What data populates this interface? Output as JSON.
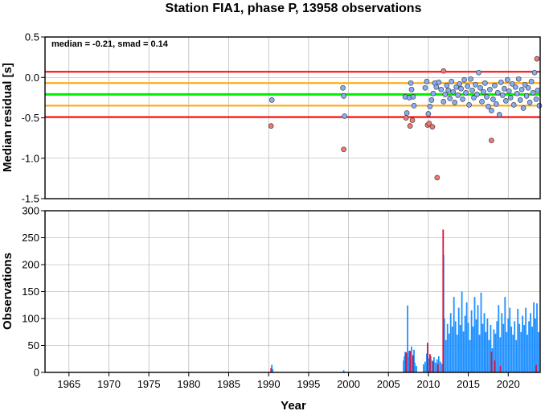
{
  "chart_data": [
    {
      "type": "scatter",
      "title": "Station FIA1, phase P, 13958 observations",
      "ylabel": "Median residual [s]",
      "annotation": "median = -0.21, smad = 0.14",
      "xlim": [
        1962,
        2024
      ],
      "ylim": [
        -1.5,
        0.5
      ],
      "x_ticks": [
        1965,
        1970,
        1975,
        1980,
        1985,
        1990,
        1995,
        2000,
        2005,
        2010,
        2015,
        2020
      ],
      "y_ticks": [
        {
          "value": 0.5,
          "label": "0.5"
        },
        {
          "value": 0.0,
          "label": "0.0"
        },
        {
          "value": -0.5,
          "label": "-0.5"
        },
        {
          "value": -1.0,
          "label": "-1.0"
        },
        {
          "value": -1.5,
          "label": "-1.5"
        }
      ],
      "grid": true,
      "reference_lines": [
        {
          "value": 0.07,
          "color": "#ff0000"
        },
        {
          "value": -0.07,
          "color": "#ffa500"
        },
        {
          "value": -0.21,
          "color": "#00ee00"
        },
        {
          "value": -0.35,
          "color": "#ffa500"
        },
        {
          "value": -0.49,
          "color": "#ff0000"
        }
      ],
      "series": [
        {
          "color": "#87aef5",
          "points": [
            [
              1990.4,
              -0.28
            ],
            [
              1999.3,
              -0.13
            ],
            [
              1999.4,
              -0.23
            ],
            [
              1999.5,
              -0.48
            ],
            [
              2007.1,
              -0.24
            ],
            [
              2007.3,
              -0.44
            ],
            [
              2007.6,
              -0.25
            ],
            [
              2007.8,
              -0.07
            ],
            [
              2007.9,
              -0.15
            ],
            [
              2008.1,
              -0.24
            ],
            [
              2008.2,
              -0.35
            ],
            [
              2009.6,
              -0.13
            ],
            [
              2009.8,
              -0.05
            ],
            [
              2010.0,
              -0.45
            ],
            [
              2010.2,
              -0.36
            ],
            [
              2010.4,
              -0.28
            ],
            [
              2010.6,
              -0.2
            ],
            [
              2010.8,
              -0.07
            ],
            [
              2011.0,
              -0.12
            ],
            [
              2011.3,
              -0.06
            ],
            [
              2011.6,
              -0.15
            ],
            [
              2011.9,
              -0.3
            ],
            [
              2012.1,
              -0.21
            ],
            [
              2012.3,
              -0.1
            ],
            [
              2012.5,
              -0.16
            ],
            [
              2012.7,
              -0.26
            ],
            [
              2012.9,
              -0.05
            ],
            [
              2013.1,
              -0.18
            ],
            [
              2013.3,
              -0.31
            ],
            [
              2013.5,
              -0.12
            ],
            [
              2013.7,
              -0.22
            ],
            [
              2013.9,
              -0.08
            ],
            [
              2014.1,
              -0.14
            ],
            [
              2014.3,
              -0.27
            ],
            [
              2014.5,
              -0.03
            ],
            [
              2014.7,
              -0.19
            ],
            [
              2014.9,
              -0.11
            ],
            [
              2015.1,
              -0.34
            ],
            [
              2015.3,
              -0.02
            ],
            [
              2015.5,
              -0.16
            ],
            [
              2015.7,
              -0.25
            ],
            [
              2015.9,
              -0.09
            ],
            [
              2016.1,
              -0.21
            ],
            [
              2016.3,
              0.06
            ],
            [
              2016.5,
              -0.13
            ],
            [
              2016.7,
              -0.3
            ],
            [
              2016.9,
              -0.18
            ],
            [
              2017.1,
              -0.07
            ],
            [
              2017.3,
              -0.24
            ],
            [
              2017.5,
              -0.36
            ],
            [
              2017.7,
              -0.15
            ],
            [
              2017.9,
              -0.41
            ],
            [
              2018.1,
              -0.27
            ],
            [
              2018.3,
              -0.1
            ],
            [
              2018.5,
              -0.33
            ],
            [
              2018.7,
              -0.19
            ],
            [
              2018.9,
              -0.46
            ],
            [
              2019.1,
              -0.06
            ],
            [
              2019.3,
              -0.22
            ],
            [
              2019.5,
              -0.14
            ],
            [
              2019.7,
              -0.29
            ],
            [
              2019.9,
              -0.03
            ],
            [
              2020.1,
              -0.17
            ],
            [
              2020.3,
              -0.25
            ],
            [
              2020.5,
              -0.08
            ],
            [
              2020.7,
              -0.34
            ],
            [
              2020.9,
              -0.12
            ],
            [
              2021.1,
              -0.2
            ],
            [
              2021.3,
              -0.02
            ],
            [
              2021.5,
              -0.28
            ],
            [
              2021.7,
              -0.15
            ],
            [
              2021.9,
              -0.38
            ],
            [
              2022.1,
              -0.09
            ],
            [
              2022.3,
              -0.23
            ],
            [
              2022.5,
              -0.13
            ],
            [
              2022.7,
              -0.31
            ],
            [
              2022.9,
              -0.05
            ],
            [
              2023.1,
              -0.19
            ],
            [
              2023.3,
              0.06
            ],
            [
              2023.5,
              -0.27
            ],
            [
              2023.7,
              -0.16
            ],
            [
              2023.9,
              -0.35
            ]
          ]
        },
        {
          "color": "#f07870",
          "points": [
            [
              1990.3,
              -0.6
            ],
            [
              1999.4,
              -0.89
            ],
            [
              2007.2,
              -0.5
            ],
            [
              2007.7,
              -0.6
            ],
            [
              2008.0,
              -0.53
            ],
            [
              2009.9,
              -0.59
            ],
            [
              2010.1,
              -0.57
            ],
            [
              2010.5,
              -0.61
            ],
            [
              2011.1,
              -1.24
            ],
            [
              2011.9,
              0.08
            ],
            [
              2017.9,
              -0.78
            ],
            [
              2023.6,
              0.23
            ]
          ]
        }
      ]
    },
    {
      "type": "bar",
      "ylabel": "Observations",
      "xlabel": "Year",
      "xlim": [
        1962,
        2024
      ],
      "ylim": [
        0,
        300
      ],
      "x_ticks": [
        1965,
        1970,
        1975,
        1980,
        1985,
        1990,
        1995,
        2000,
        2005,
        2010,
        2015,
        2020
      ],
      "y_ticks": [
        0,
        50,
        100,
        150,
        200,
        250,
        300
      ],
      "grid": true,
      "series": [
        {
          "color": "#1e90ff",
          "bars": [
            [
              1990.4,
              14
            ],
            [
              1990.5,
              6
            ],
            [
              1999.4,
              4
            ],
            [
              2006.9,
              22
            ],
            [
              2007.0,
              30
            ],
            [
              2007.1,
              38
            ],
            [
              2007.3,
              35
            ],
            [
              2007.4,
              124
            ],
            [
              2007.5,
              28
            ],
            [
              2007.6,
              40
            ],
            [
              2007.8,
              22
            ],
            [
              2007.9,
              48
            ],
            [
              2008.0,
              30
            ],
            [
              2008.2,
              42
            ],
            [
              2008.3,
              18
            ],
            [
              2008.5,
              12
            ],
            [
              2009.4,
              15
            ],
            [
              2009.6,
              20
            ],
            [
              2009.8,
              35
            ],
            [
              2009.9,
              44
            ],
            [
              2010.1,
              26
            ],
            [
              2010.3,
              30
            ],
            [
              2010.5,
              22
            ],
            [
              2010.7,
              28
            ],
            [
              2010.9,
              18
            ],
            [
              2011.1,
              24
            ],
            [
              2011.3,
              30
            ],
            [
              2011.5,
              20
            ],
            [
              2011.7,
              16
            ],
            [
              2011.9,
              218
            ],
            [
              2012.0,
              100
            ],
            [
              2012.2,
              60
            ],
            [
              2012.4,
              90
            ],
            [
              2012.6,
              72
            ],
            [
              2012.8,
              110
            ],
            [
              2013.0,
              85
            ],
            [
              2013.2,
              140
            ],
            [
              2013.4,
              95
            ],
            [
              2013.6,
              70
            ],
            [
              2013.8,
              120
            ],
            [
              2014.0,
              88
            ],
            [
              2014.2,
              150
            ],
            [
              2014.4,
              76
            ],
            [
              2014.6,
              105
            ],
            [
              2014.8,
              130
            ],
            [
              2015.0,
              92
            ],
            [
              2015.2,
              60
            ],
            [
              2015.4,
              115
            ],
            [
              2015.6,
              85
            ],
            [
              2015.8,
              140
            ],
            [
              2016.0,
              98
            ],
            [
              2016.2,
              125
            ],
            [
              2016.4,
              70
            ],
            [
              2016.6,
              148
            ],
            [
              2016.8,
              90
            ],
            [
              2017.0,
              110
            ],
            [
              2017.2,
              75
            ],
            [
              2017.4,
              100
            ],
            [
              2017.6,
              60
            ],
            [
              2017.8,
              88
            ],
            [
              2018.0,
              45
            ],
            [
              2018.2,
              80
            ],
            [
              2018.4,
              72
            ],
            [
              2018.6,
              95
            ],
            [
              2018.8,
              125
            ],
            [
              2019.0,
              65
            ],
            [
              2019.2,
              110
            ],
            [
              2019.4,
              90
            ],
            [
              2019.6,
              140
            ],
            [
              2019.8,
              75
            ],
            [
              2020.0,
              100
            ],
            [
              2020.2,
              120
            ],
            [
              2020.4,
              85
            ],
            [
              2020.6,
              70
            ],
            [
              2020.8,
              95
            ],
            [
              2021.0,
              60
            ],
            [
              2021.2,
              118
            ],
            [
              2021.4,
              90
            ],
            [
              2021.6,
              75
            ],
            [
              2021.8,
              105
            ],
            [
              2022.0,
              88
            ],
            [
              2022.2,
              120
            ],
            [
              2022.4,
              70
            ],
            [
              2022.6,
              95
            ],
            [
              2022.8,
              110
            ],
            [
              2023.0,
              85
            ],
            [
              2023.2,
              130
            ],
            [
              2023.4,
              100
            ],
            [
              2023.6,
              128
            ],
            [
              2023.8,
              75
            ]
          ]
        },
        {
          "color": "#dc143c",
          "bars": [
            [
              1990.3,
              8
            ],
            [
              2007.2,
              37
            ],
            [
              2007.7,
              40
            ],
            [
              2008.1,
              32
            ],
            [
              2009.9,
              55
            ],
            [
              2010.2,
              34
            ],
            [
              2010.6,
              20
            ],
            [
              2011.2,
              15
            ],
            [
              2011.85,
              265
            ],
            [
              2017.9,
              38
            ],
            [
              2018.3,
              22
            ],
            [
              2019.0,
              12
            ],
            [
              2023.5,
              14
            ]
          ]
        }
      ]
    }
  ]
}
